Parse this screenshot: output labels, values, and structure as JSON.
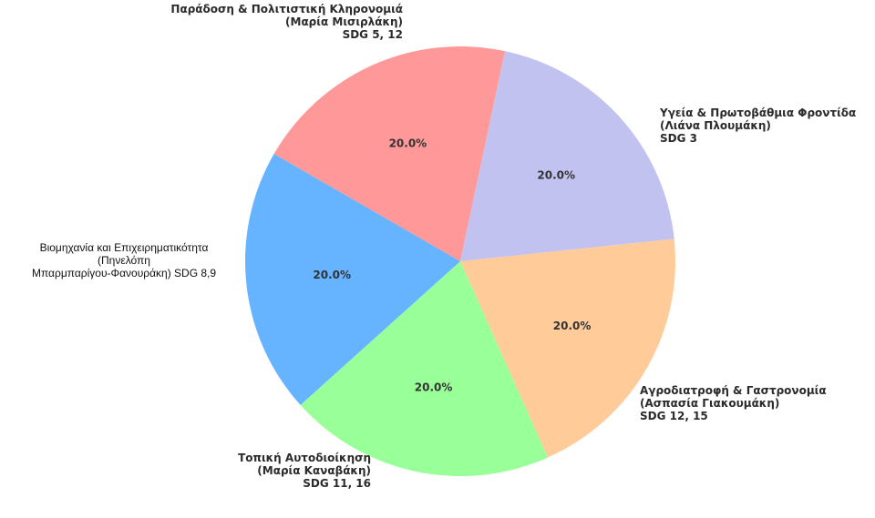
{
  "chart_data": {
    "type": "pie",
    "categories": [
      [
        "Υγεία & Πρωτοβάθμια Φροντίδα",
        "(Λιάνα Πλουμάκη)",
        "SDG 3"
      ],
      [
        "Αγροδιατροφή & Γαστρονομία",
        "(Ασπασία Γιακουμάκη)",
        "SDG 12, 15"
      ],
      [
        "Τοπική Αυτοδιοίκηση",
        "(Μαρία Καναβάκη)",
        "SDG 11, 16"
      ],
      [
        "Βιομηχανία και Επιχειρηματικότητα",
        "(Πηνελόπη",
        "Μπαρμπαρίγου-Φανουράκη) SDG 8,9"
      ],
      [
        "Παράδοση & Πολιτιστική Κληρονομιά",
        "(Μαρία Μισιρλάκη)",
        "SDG 5, 12"
      ]
    ],
    "values": [
      20.0,
      20.0,
      20.0,
      20.0,
      20.0
    ],
    "value_labels": [
      "20.0%",
      "20.0%",
      "20.0%",
      "20.0%",
      "20.0%"
    ],
    "colors": [
      "#ffcc99",
      "#99ff99",
      "#66b3ff",
      "#ff9999",
      "#c2c2f0"
    ],
    "title": "",
    "legend": "none"
  }
}
